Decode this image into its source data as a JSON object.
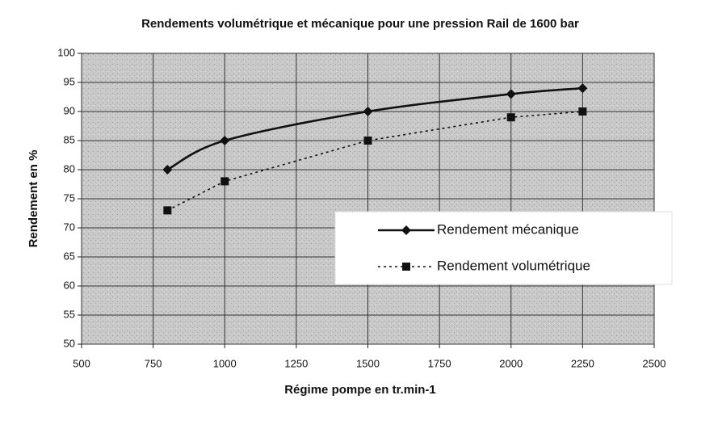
{
  "chart_data": {
    "type": "line",
    "title": "Rendements volumétrique et mécanique pour une pression Rail de 1600 bar",
    "x_label": "Régime pompe en tr.min-1",
    "y_label": "Rendement en %",
    "x": [
      800,
      1000,
      1500,
      2000,
      2250
    ],
    "series": [
      {
        "name": "Rendement mécanique",
        "color": "#111111",
        "line_style": "solid",
        "marker": "diamond",
        "smooth": true,
        "values": [
          80,
          85,
          90,
          93,
          94
        ]
      },
      {
        "name": "Rendement volumétrique",
        "color": "#111111",
        "line_style": "dotted",
        "marker": "square",
        "smooth": false,
        "values": [
          73,
          78,
          85,
          89,
          90
        ]
      }
    ],
    "xlim": [
      500,
      2500
    ],
    "xticks": [
      500,
      750,
      1000,
      1250,
      1500,
      1750,
      2000,
      2250,
      2500
    ],
    "ylim": [
      50,
      100
    ],
    "yticks": [
      50,
      55,
      60,
      65,
      70,
      75,
      80,
      85,
      90,
      95,
      100
    ],
    "grid": true,
    "legend": "right"
  }
}
